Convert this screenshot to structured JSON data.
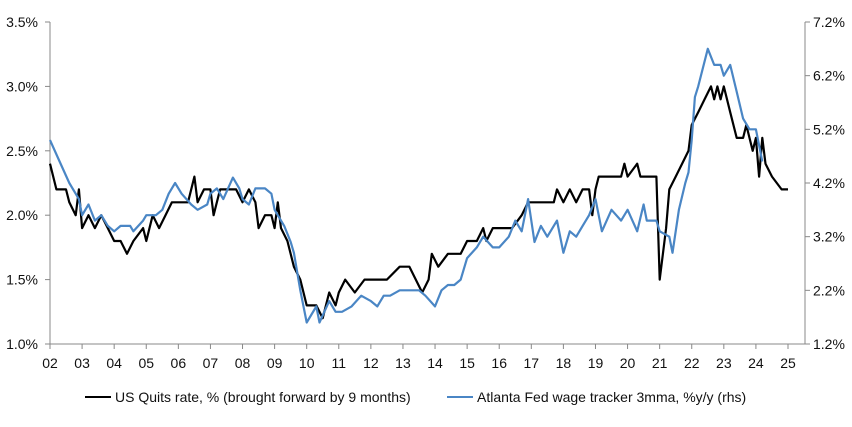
{
  "chart_data": {
    "type": "line",
    "title": "",
    "xlabel": "",
    "ylabel_left": "",
    "ylabel_right": "",
    "x_ticks": [
      "02",
      "03",
      "04",
      "05",
      "06",
      "07",
      "08",
      "09",
      "10",
      "11",
      "12",
      "13",
      "14",
      "15",
      "16",
      "17",
      "18",
      "19",
      "20",
      "21",
      "22",
      "23",
      "24",
      "25"
    ],
    "x_range": [
      2002,
      2025
    ],
    "y_left": {
      "range": [
        1.0,
        3.5
      ],
      "ticks": [
        "1.0%",
        "1.5%",
        "2.0%",
        "2.5%",
        "3.0%",
        "3.5%"
      ]
    },
    "y_right": {
      "range": [
        1.2,
        7.2
      ],
      "ticks": [
        "1.2%",
        "2.2%",
        "3.2%",
        "4.2%",
        "5.2%",
        "6.2%",
        "7.2%"
      ]
    },
    "grid": false,
    "legend_position": "bottom",
    "series": [
      {
        "name": "US Quits rate, % (brought forward by 9 months)",
        "axis": "left",
        "color": "#000000",
        "points": [
          [
            2002,
            2.4
          ],
          [
            2002.2,
            2.2
          ],
          [
            2002.5,
            2.2
          ],
          [
            2002.6,
            2.1
          ],
          [
            2002.8,
            2.0
          ],
          [
            2002.9,
            2.2
          ],
          [
            2003.0,
            1.9
          ],
          [
            2003.2,
            2.0
          ],
          [
            2003.4,
            1.9
          ],
          [
            2003.6,
            2.0
          ],
          [
            2003.8,
            1.9
          ],
          [
            2004.0,
            1.8
          ],
          [
            2004.2,
            1.8
          ],
          [
            2004.4,
            1.7
          ],
          [
            2004.6,
            1.8
          ],
          [
            2004.9,
            1.9
          ],
          [
            2005.0,
            1.8
          ],
          [
            2005.2,
            2.0
          ],
          [
            2005.4,
            1.9
          ],
          [
            2005.6,
            2.0
          ],
          [
            2005.8,
            2.1
          ],
          [
            2006.0,
            2.1
          ],
          [
            2006.3,
            2.1
          ],
          [
            2006.5,
            2.3
          ],
          [
            2006.6,
            2.1
          ],
          [
            2006.8,
            2.2
          ],
          [
            2007.0,
            2.2
          ],
          [
            2007.1,
            2.0
          ],
          [
            2007.3,
            2.2
          ],
          [
            2007.5,
            2.2
          ],
          [
            2007.8,
            2.2
          ],
          [
            2008.0,
            2.1
          ],
          [
            2008.2,
            2.2
          ],
          [
            2008.4,
            2.1
          ],
          [
            2008.5,
            1.9
          ],
          [
            2008.7,
            2.0
          ],
          [
            2008.9,
            2.0
          ],
          [
            2009.0,
            1.9
          ],
          [
            2009.1,
            2.1
          ],
          [
            2009.2,
            1.9
          ],
          [
            2009.4,
            1.8
          ],
          [
            2009.6,
            1.6
          ],
          [
            2009.8,
            1.5
          ],
          [
            2010.0,
            1.3
          ],
          [
            2010.3,
            1.3
          ],
          [
            2010.5,
            1.2
          ],
          [
            2010.7,
            1.4
          ],
          [
            2010.9,
            1.3
          ],
          [
            2011.0,
            1.4
          ],
          [
            2011.2,
            1.5
          ],
          [
            2011.5,
            1.4
          ],
          [
            2011.8,
            1.5
          ],
          [
            2012.0,
            1.5
          ],
          [
            2012.5,
            1.5
          ],
          [
            2012.9,
            1.6
          ],
          [
            2013.2,
            1.6
          ],
          [
            2013.4,
            1.5
          ],
          [
            2013.6,
            1.4
          ],
          [
            2013.8,
            1.5
          ],
          [
            2013.9,
            1.7
          ],
          [
            2014.1,
            1.6
          ],
          [
            2014.4,
            1.7
          ],
          [
            2014.8,
            1.7
          ],
          [
            2015.0,
            1.8
          ],
          [
            2015.3,
            1.8
          ],
          [
            2015.5,
            1.9
          ],
          [
            2015.6,
            1.8
          ],
          [
            2015.8,
            1.9
          ],
          [
            2016.0,
            1.9
          ],
          [
            2016.4,
            1.9
          ],
          [
            2016.7,
            2.0
          ],
          [
            2016.9,
            2.1
          ],
          [
            2017.3,
            2.1
          ],
          [
            2017.7,
            2.1
          ],
          [
            2017.8,
            2.2
          ],
          [
            2018.0,
            2.1
          ],
          [
            2018.2,
            2.2
          ],
          [
            2018.4,
            2.1
          ],
          [
            2018.6,
            2.2
          ],
          [
            2018.8,
            2.2
          ],
          [
            2018.9,
            2.0
          ],
          [
            2019.0,
            2.2
          ],
          [
            2019.1,
            2.3
          ],
          [
            2019.8,
            2.3
          ],
          [
            2019.9,
            2.4
          ],
          [
            2020.0,
            2.3
          ],
          [
            2020.3,
            2.4
          ],
          [
            2020.4,
            2.3
          ],
          [
            2020.9,
            2.3
          ],
          [
            2021.0,
            1.5
          ],
          [
            2021.2,
            1.9
          ],
          [
            2021.3,
            2.2
          ],
          [
            2021.5,
            2.3
          ],
          [
            2021.7,
            2.4
          ],
          [
            2021.9,
            2.5
          ],
          [
            2022.0,
            2.7
          ],
          [
            2022.2,
            2.8
          ],
          [
            2022.4,
            2.9
          ],
          [
            2022.6,
            3.0
          ],
          [
            2022.7,
            2.9
          ],
          [
            2022.8,
            3.0
          ],
          [
            2022.9,
            2.9
          ],
          [
            2023.0,
            3.0
          ],
          [
            2023.2,
            2.8
          ],
          [
            2023.4,
            2.6
          ],
          [
            2023.6,
            2.6
          ],
          [
            2023.7,
            2.7
          ],
          [
            2023.9,
            2.5
          ],
          [
            2024.0,
            2.6
          ],
          [
            2024.1,
            2.3
          ],
          [
            2024.2,
            2.6
          ],
          [
            2024.3,
            2.4
          ],
          [
            2024.5,
            2.3
          ],
          [
            2024.8,
            2.2
          ],
          [
            2025.0,
            2.2
          ]
        ]
      },
      {
        "name": "Atlanta Fed wage tracker 3mma, %y/y (rhs)",
        "axis": "right",
        "color": "#4a86c5",
        "points": [
          [
            2002,
            5.0
          ],
          [
            2002.3,
            4.6
          ],
          [
            2002.6,
            4.2
          ],
          [
            2002.9,
            3.9
          ],
          [
            2003.0,
            3.6
          ],
          [
            2003.2,
            3.8
          ],
          [
            2003.4,
            3.5
          ],
          [
            2003.6,
            3.6
          ],
          [
            2003.8,
            3.4
          ],
          [
            2004.0,
            3.3
          ],
          [
            2004.2,
            3.4
          ],
          [
            2004.5,
            3.4
          ],
          [
            2004.6,
            3.3
          ],
          [
            2004.9,
            3.5
          ],
          [
            2005.0,
            3.6
          ],
          [
            2005.3,
            3.6
          ],
          [
            2005.5,
            3.7
          ],
          [
            2005.7,
            4.0
          ],
          [
            2005.9,
            4.2
          ],
          [
            2006.1,
            4.0
          ],
          [
            2006.4,
            3.8
          ],
          [
            2006.6,
            3.7
          ],
          [
            2006.9,
            3.8
          ],
          [
            2007.0,
            4.0
          ],
          [
            2007.2,
            4.1
          ],
          [
            2007.4,
            3.9
          ],
          [
            2007.7,
            4.3
          ],
          [
            2007.9,
            4.1
          ],
          [
            2008.0,
            3.9
          ],
          [
            2008.2,
            3.8
          ],
          [
            2008.4,
            4.1
          ],
          [
            2008.7,
            4.1
          ],
          [
            2008.9,
            4.0
          ],
          [
            2009.0,
            3.7
          ],
          [
            2009.3,
            3.4
          ],
          [
            2009.5,
            3.1
          ],
          [
            2009.6,
            2.9
          ],
          [
            2009.8,
            2.2
          ],
          [
            2010.0,
            1.6
          ],
          [
            2010.3,
            1.9
          ],
          [
            2010.4,
            1.6
          ],
          [
            2010.7,
            2.0
          ],
          [
            2010.9,
            1.8
          ],
          [
            2011.1,
            1.8
          ],
          [
            2011.4,
            1.9
          ],
          [
            2011.7,
            2.1
          ],
          [
            2012.0,
            2.0
          ],
          [
            2012.2,
            1.9
          ],
          [
            2012.4,
            2.1
          ],
          [
            2012.6,
            2.1
          ],
          [
            2012.9,
            2.2
          ],
          [
            2013.2,
            2.2
          ],
          [
            2013.5,
            2.2
          ],
          [
            2013.7,
            2.1
          ],
          [
            2014.0,
            1.9
          ],
          [
            2014.2,
            2.2
          ],
          [
            2014.4,
            2.3
          ],
          [
            2014.6,
            2.3
          ],
          [
            2014.8,
            2.4
          ],
          [
            2015.0,
            2.8
          ],
          [
            2015.3,
            3.0
          ],
          [
            2015.5,
            3.2
          ],
          [
            2015.8,
            3.0
          ],
          [
            2016.0,
            3.0
          ],
          [
            2016.3,
            3.2
          ],
          [
            2016.5,
            3.5
          ],
          [
            2016.7,
            3.3
          ],
          [
            2016.9,
            3.9
          ],
          [
            2017.1,
            3.1
          ],
          [
            2017.3,
            3.4
          ],
          [
            2017.5,
            3.2
          ],
          [
            2017.8,
            3.5
          ],
          [
            2018.0,
            2.9
          ],
          [
            2018.2,
            3.3
          ],
          [
            2018.4,
            3.2
          ],
          [
            2018.6,
            3.4
          ],
          [
            2018.8,
            3.6
          ],
          [
            2019.0,
            3.9
          ],
          [
            2019.2,
            3.3
          ],
          [
            2019.5,
            3.7
          ],
          [
            2019.8,
            3.5
          ],
          [
            2020.0,
            3.7
          ],
          [
            2020.3,
            3.3
          ],
          [
            2020.5,
            3.8
          ],
          [
            2020.6,
            3.5
          ],
          [
            2020.9,
            3.5
          ],
          [
            2021.0,
            3.3
          ],
          [
            2021.3,
            3.2
          ],
          [
            2021.4,
            2.9
          ],
          [
            2021.6,
            3.7
          ],
          [
            2021.8,
            4.2
          ],
          [
            2021.9,
            4.4
          ],
          [
            2022.0,
            5.0
          ],
          [
            2022.1,
            5.8
          ],
          [
            2022.2,
            6.0
          ],
          [
            2022.5,
            6.7
          ],
          [
            2022.7,
            6.4
          ],
          [
            2022.9,
            6.4
          ],
          [
            2023.0,
            6.2
          ],
          [
            2023.2,
            6.4
          ],
          [
            2023.4,
            5.9
          ],
          [
            2023.6,
            5.4
          ],
          [
            2023.8,
            5.2
          ],
          [
            2024.0,
            5.2
          ],
          [
            2024.1,
            4.9
          ],
          [
            2024.2,
            4.6
          ]
        ]
      }
    ]
  }
}
